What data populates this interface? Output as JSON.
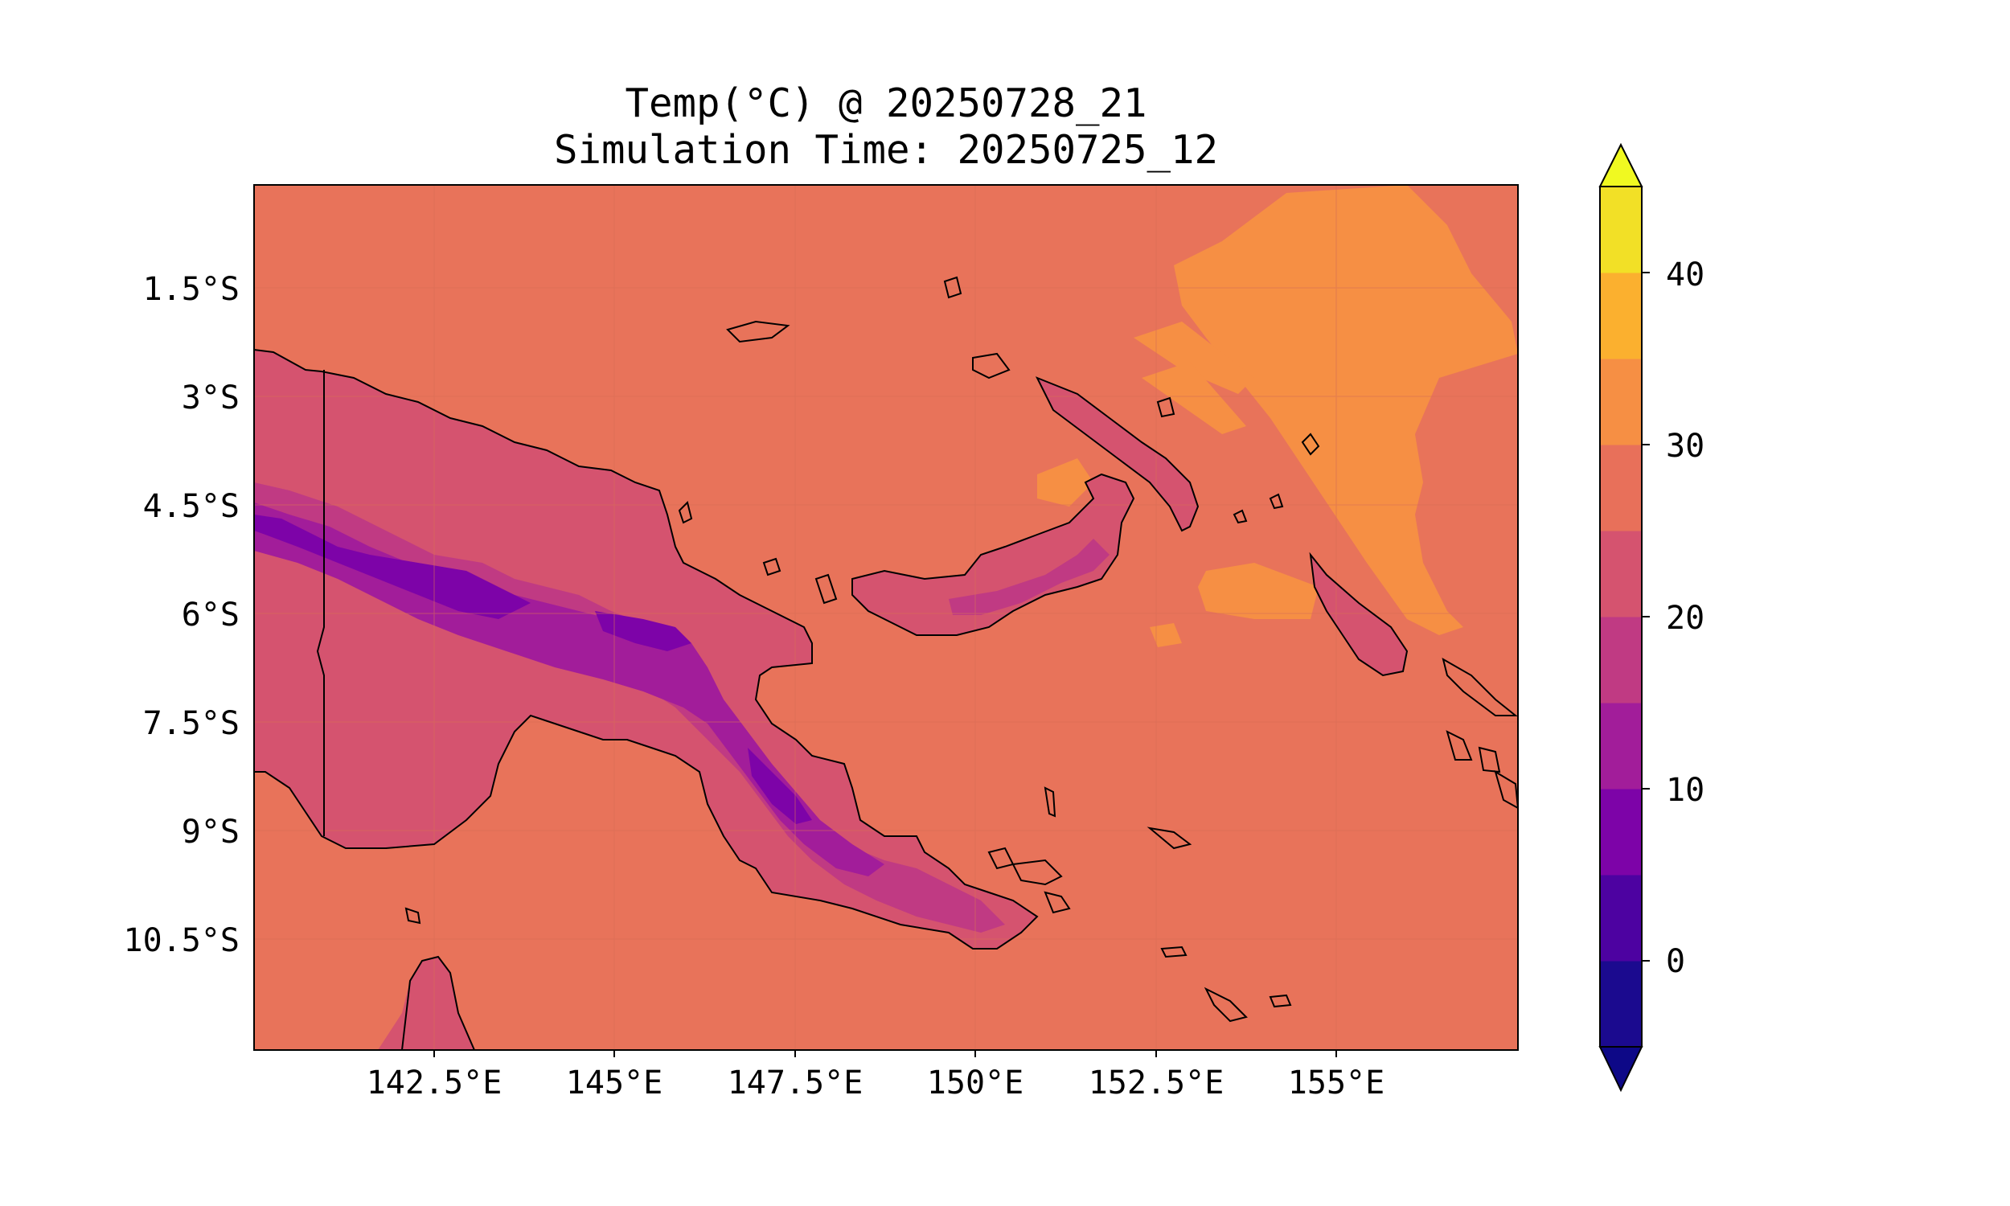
{
  "title_line1": "Temp(°C) @ 20250728_21",
  "title_line2": "Simulation Time: 20250725_12",
  "lat_ticks": [
    "1.5°S",
    "3°S",
    "4.5°S",
    "6°S",
    "7.5°S",
    "9°S",
    "10.5°S"
  ],
  "lon_ticks": [
    "142.5°E",
    "145°E",
    "147.5°E",
    "150°E",
    "152.5°E",
    "155°E"
  ],
  "colorbar": {
    "tick_labels": [
      "0",
      "10",
      "20",
      "30",
      "40"
    ],
    "levels": [
      -5,
      0,
      5,
      10,
      15,
      20,
      25,
      30,
      35,
      40,
      45
    ],
    "colors": [
      "#1b0a8f",
      "#4d02a1",
      "#7d03a8",
      "#a21d9a",
      "#c03a83",
      "#d5536f",
      "#e8705a",
      "#f68f44",
      "#fbb02f",
      "#f2e026"
    ],
    "extend": "both",
    "under_color": "#0d0887",
    "over_color": "#f0f921"
  },
  "map": {
    "background_color": "#e8735a",
    "lon_range": [
      140,
      157.5
    ],
    "lat_range": [
      -12.5,
      0
    ],
    "features": [
      "coastlines",
      "country border 141°E",
      "gridlines"
    ]
  }
}
